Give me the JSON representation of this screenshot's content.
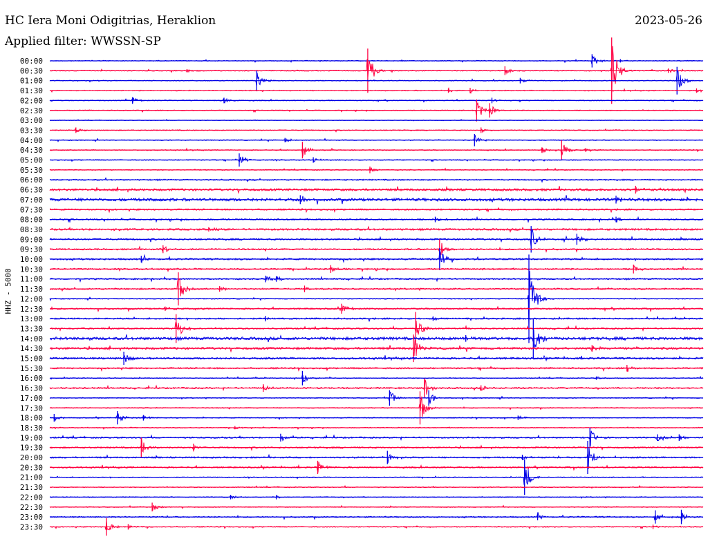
{
  "header": {
    "station": "HC Iera Moni Odigitrias, Heraklion",
    "date": "2023-05-26",
    "filter": "Applied filter: WWSSN-SP",
    "channel_label": "HHZ - 5000"
  },
  "colors": {
    "even_trace": "#0000e6",
    "odd_trace": "#ff0040",
    "text": "#000000"
  },
  "chart_data": {
    "type": "line",
    "title": "HC Iera Moni Odigitrias, Heraklion",
    "ylabel": "HHZ - 5000",
    "xlabel": "",
    "grid": false,
    "row_labels": [
      "00:00",
      "00:30",
      "01:00",
      "01:30",
      "02:00",
      "02:30",
      "03:00",
      "03:30",
      "04:00",
      "04:30",
      "05:00",
      "05:30",
      "06:00",
      "06:30",
      "07:00",
      "07:30",
      "08:00",
      "08:30",
      "09:00",
      "09:30",
      "10:00",
      "10:30",
      "11:00",
      "11:30",
      "12:00",
      "12:30",
      "13:00",
      "13:30",
      "14:00",
      "14:30",
      "15:00",
      "15:30",
      "16:00",
      "16:30",
      "17:00",
      "17:30",
      "18:00",
      "18:30",
      "19:00",
      "19:30",
      "20:00",
      "20:30",
      "21:00",
      "21:30",
      "22:00",
      "22:30",
      "23:00",
      "23:30"
    ],
    "noise_level": [
      1,
      1,
      1,
      1,
      1,
      1,
      0.6,
      1,
      1,
      1,
      1,
      1,
      1.4,
      2.4,
      3,
      1.6,
      1.6,
      2,
      1.8,
      1.6,
      1.8,
      1.6,
      1.6,
      1.6,
      1,
      1.6,
      1.6,
      1.6,
      3,
      2.4,
      2,
      1.6,
      1,
      1.6,
      1,
      1,
      1,
      1,
      1.6,
      1.6,
      1.6,
      1.6,
      1,
      1,
      1,
      1,
      1.4,
      1
    ],
    "events": [
      {
        "row": 0,
        "minute": 24.9,
        "amp": 1.2
      },
      {
        "row": 0,
        "minute": 26.2,
        "amp": 0.3
      },
      {
        "row": 1,
        "minute": 6.3,
        "amp": 0.3
      },
      {
        "row": 1,
        "minute": 14.6,
        "amp": 4.0
      },
      {
        "row": 1,
        "minute": 25.8,
        "amp": 6.0
      },
      {
        "row": 1,
        "minute": 20.9,
        "amp": 0.8
      },
      {
        "row": 1,
        "minute": 28.4,
        "amp": 0.4
      },
      {
        "row": 2,
        "minute": 9.5,
        "amp": 1.8
      },
      {
        "row": 2,
        "minute": 28.8,
        "amp": 2.5
      },
      {
        "row": 2,
        "minute": 21.6,
        "amp": 0.5
      },
      {
        "row": 3,
        "minute": 18.3,
        "amp": 0.4
      },
      {
        "row": 3,
        "minute": 19.3,
        "amp": 0.5
      },
      {
        "row": 3,
        "minute": 29.7,
        "amp": 0.4
      },
      {
        "row": 4,
        "minute": 3.8,
        "amp": 0.6
      },
      {
        "row": 4,
        "minute": 8.0,
        "amp": 0.5
      },
      {
        "row": 4,
        "minute": 20.3,
        "amp": 0.5
      },
      {
        "row": 5,
        "minute": 19.6,
        "amp": 2.0
      },
      {
        "row": 5,
        "minute": 20.2,
        "amp": 1.3
      },
      {
        "row": 7,
        "minute": 1.2,
        "amp": 0.5
      },
      {
        "row": 7,
        "minute": 19.8,
        "amp": 0.5
      },
      {
        "row": 8,
        "minute": 19.5,
        "amp": 1.1
      },
      {
        "row": 8,
        "minute": 10.8,
        "amp": 0.4
      },
      {
        "row": 9,
        "minute": 11.6,
        "amp": 1.5
      },
      {
        "row": 9,
        "minute": 23.5,
        "amp": 1.8
      },
      {
        "row": 9,
        "minute": 22.6,
        "amp": 0.5
      },
      {
        "row": 9,
        "minute": 24.6,
        "amp": 0.3
      },
      {
        "row": 10,
        "minute": 8.7,
        "amp": 1.2
      },
      {
        "row": 10,
        "minute": 12.1,
        "amp": 0.5
      },
      {
        "row": 11,
        "minute": 14.7,
        "amp": 0.6
      },
      {
        "row": 13,
        "minute": 26.9,
        "amp": 0.7
      },
      {
        "row": 14,
        "minute": 11.5,
        "amp": 0.8
      },
      {
        "row": 14,
        "minute": 26.0,
        "amp": 0.7
      },
      {
        "row": 16,
        "minute": 17.7,
        "amp": 0.5
      },
      {
        "row": 16,
        "minute": 26.0,
        "amp": 0.5
      },
      {
        "row": 17,
        "minute": 7.3,
        "amp": 0.4
      },
      {
        "row": 18,
        "minute": 22.1,
        "amp": 2.4
      },
      {
        "row": 18,
        "minute": 24.2,
        "amp": 1.0
      },
      {
        "row": 19,
        "minute": 5.2,
        "amp": 0.7
      },
      {
        "row": 19,
        "minute": 17.9,
        "amp": 1.8
      },
      {
        "row": 20,
        "minute": 17.9,
        "amp": 2.0
      },
      {
        "row": 20,
        "minute": 4.2,
        "amp": 0.6
      },
      {
        "row": 21,
        "minute": 12.9,
        "amp": 0.7
      },
      {
        "row": 21,
        "minute": 26.8,
        "amp": 0.8
      },
      {
        "row": 22,
        "minute": 9.9,
        "amp": 0.6
      },
      {
        "row": 22,
        "minute": 10.4,
        "amp": 0.5
      },
      {
        "row": 23,
        "minute": 5.9,
        "amp": 3.0
      },
      {
        "row": 23,
        "minute": 7.8,
        "amp": 0.5
      },
      {
        "row": 23,
        "minute": 11.7,
        "amp": 0.6
      },
      {
        "row": 24,
        "minute": 22.0,
        "amp": 8.0
      },
      {
        "row": 25,
        "minute": 5.3,
        "amp": 0.4
      },
      {
        "row": 25,
        "minute": 13.4,
        "amp": 0.9
      },
      {
        "row": 26,
        "minute": 9.9,
        "amp": 0.5
      },
      {
        "row": 26,
        "minute": 17.6,
        "amp": 0.4
      },
      {
        "row": 27,
        "minute": 5.8,
        "amp": 2.6
      },
      {
        "row": 27,
        "minute": 16.8,
        "amp": 3.0
      },
      {
        "row": 28,
        "minute": 22.2,
        "amp": 3.6
      },
      {
        "row": 28,
        "minute": 19.1,
        "amp": 0.6
      },
      {
        "row": 29,
        "minute": 16.7,
        "amp": 2.5
      },
      {
        "row": 29,
        "minute": 24.9,
        "amp": 0.6
      },
      {
        "row": 30,
        "minute": 3.4,
        "amp": 1.2
      },
      {
        "row": 31,
        "minute": 26.5,
        "amp": 0.6
      },
      {
        "row": 32,
        "minute": 11.6,
        "amp": 1.3
      },
      {
        "row": 32,
        "minute": 25.1,
        "amp": 0.3
      },
      {
        "row": 33,
        "minute": 9.8,
        "amp": 0.7
      },
      {
        "row": 33,
        "minute": 17.2,
        "amp": 1.7
      },
      {
        "row": 33,
        "minute": 19.8,
        "amp": 0.5
      },
      {
        "row": 34,
        "minute": 15.6,
        "amp": 1.4
      },
      {
        "row": 34,
        "minute": 17.4,
        "amp": 1.4
      },
      {
        "row": 35,
        "minute": 17.0,
        "amp": 3.0
      },
      {
        "row": 36,
        "minute": 0.2,
        "amp": 0.7
      },
      {
        "row": 36,
        "minute": 3.1,
        "amp": 1.2
      },
      {
        "row": 36,
        "minute": 4.3,
        "amp": 0.5
      },
      {
        "row": 36,
        "minute": 21.5,
        "amp": 0.4
      },
      {
        "row": 37,
        "minute": 8.5,
        "amp": 0.3
      },
      {
        "row": 38,
        "minute": 10.6,
        "amp": 0.7
      },
      {
        "row": 38,
        "minute": 24.8,
        "amp": 1.8
      },
      {
        "row": 38,
        "minute": 27.9,
        "amp": 0.6
      },
      {
        "row": 38,
        "minute": 28.9,
        "amp": 0.6
      },
      {
        "row": 39,
        "minute": 4.2,
        "amp": 1.8
      },
      {
        "row": 39,
        "minute": 6.6,
        "amp": 0.7
      },
      {
        "row": 40,
        "minute": 15.5,
        "amp": 1.2
      },
      {
        "row": 40,
        "minute": 24.7,
        "amp": 3.0
      },
      {
        "row": 40,
        "minute": 21.7,
        "amp": 0.5
      },
      {
        "row": 41,
        "minute": 12.3,
        "amp": 1.2
      },
      {
        "row": 42,
        "minute": 21.8,
        "amp": 3.2
      },
      {
        "row": 44,
        "minute": 8.3,
        "amp": 0.4
      },
      {
        "row": 44,
        "minute": 10.4,
        "amp": 0.4
      },
      {
        "row": 45,
        "minute": 4.7,
        "amp": 0.8
      },
      {
        "row": 46,
        "minute": 22.4,
        "amp": 0.6
      },
      {
        "row": 46,
        "minute": 27.8,
        "amp": 1.2
      },
      {
        "row": 46,
        "minute": 29.0,
        "amp": 1.3
      },
      {
        "row": 47,
        "minute": 2.6,
        "amp": 1.6
      },
      {
        "row": 47,
        "minute": 3.6,
        "amp": 0.5
      },
      {
        "row": 47,
        "minute": 27.7,
        "amp": 0.4
      }
    ]
  }
}
